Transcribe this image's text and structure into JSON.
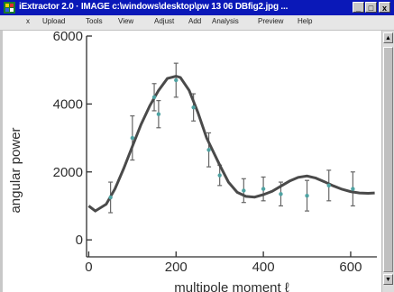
{
  "window": {
    "title": "iExtractor 2.0 · IMAGE c:\\windows\\desktop\\pw 13 06 DBfig2.jpg ...",
    "controls": {
      "minimize": "_",
      "maximize": "□",
      "close": "x"
    }
  },
  "menu": {
    "items": [
      "x",
      "Upload",
      "Tools",
      "View",
      "Adjust",
      "Add",
      "Analysis",
      "Preview",
      "Help"
    ]
  },
  "scrollbar": {
    "up_arrow": "▲",
    "down_arrow": "▼"
  },
  "chart_data": {
    "type": "line",
    "xlabel": "multipole moment ℓ",
    "ylabel": "angular power",
    "xlim": [
      -5,
      660
    ],
    "ylim": [
      -500,
      6000
    ],
    "x_ticks": [
      "0",
      "200",
      "400",
      "600"
    ],
    "x_tick_values": [
      0,
      200,
      400,
      600
    ],
    "y_ticks": [
      "0",
      "2000",
      "4000",
      "6000"
    ],
    "y_tick_values": [
      0,
      2000,
      4000,
      6000
    ],
    "curve": {
      "x": [
        0,
        15,
        40,
        60,
        80,
        100,
        120,
        140,
        160,
        180,
        200,
        210,
        230,
        250,
        270,
        300,
        320,
        340,
        360,
        380,
        400,
        420,
        440,
        460,
        480,
        500,
        520,
        540,
        560,
        580,
        600,
        620,
        640,
        655
      ],
      "y": [
        1000,
        850,
        1050,
        1500,
        2100,
        2750,
        3400,
        3950,
        4400,
        4750,
        4820,
        4780,
        4400,
        3750,
        3000,
        2200,
        1700,
        1400,
        1280,
        1260,
        1330,
        1430,
        1580,
        1730,
        1840,
        1880,
        1820,
        1710,
        1590,
        1490,
        1420,
        1380,
        1370,
        1380
      ]
    },
    "points": [
      {
        "x": 50,
        "y": 1250,
        "err": 450
      },
      {
        "x": 100,
        "y": 3000,
        "err": 650
      },
      {
        "x": 150,
        "y": 4200,
        "err": 400
      },
      {
        "x": 160,
        "y": 3700,
        "err": 400
      },
      {
        "x": 200,
        "y": 4700,
        "err": 500
      },
      {
        "x": 240,
        "y": 3900,
        "err": 400
      },
      {
        "x": 275,
        "y": 2650,
        "err": 500
      },
      {
        "x": 300,
        "y": 1900,
        "err": 300
      },
      {
        "x": 355,
        "y": 1450,
        "err": 350
      },
      {
        "x": 400,
        "y": 1500,
        "err": 350
      },
      {
        "x": 440,
        "y": 1350,
        "err": 350
      },
      {
        "x": 500,
        "y": 1300,
        "err": 450
      },
      {
        "x": 550,
        "y": 1600,
        "err": 450
      },
      {
        "x": 605,
        "y": 1500,
        "err": 500
      }
    ]
  }
}
